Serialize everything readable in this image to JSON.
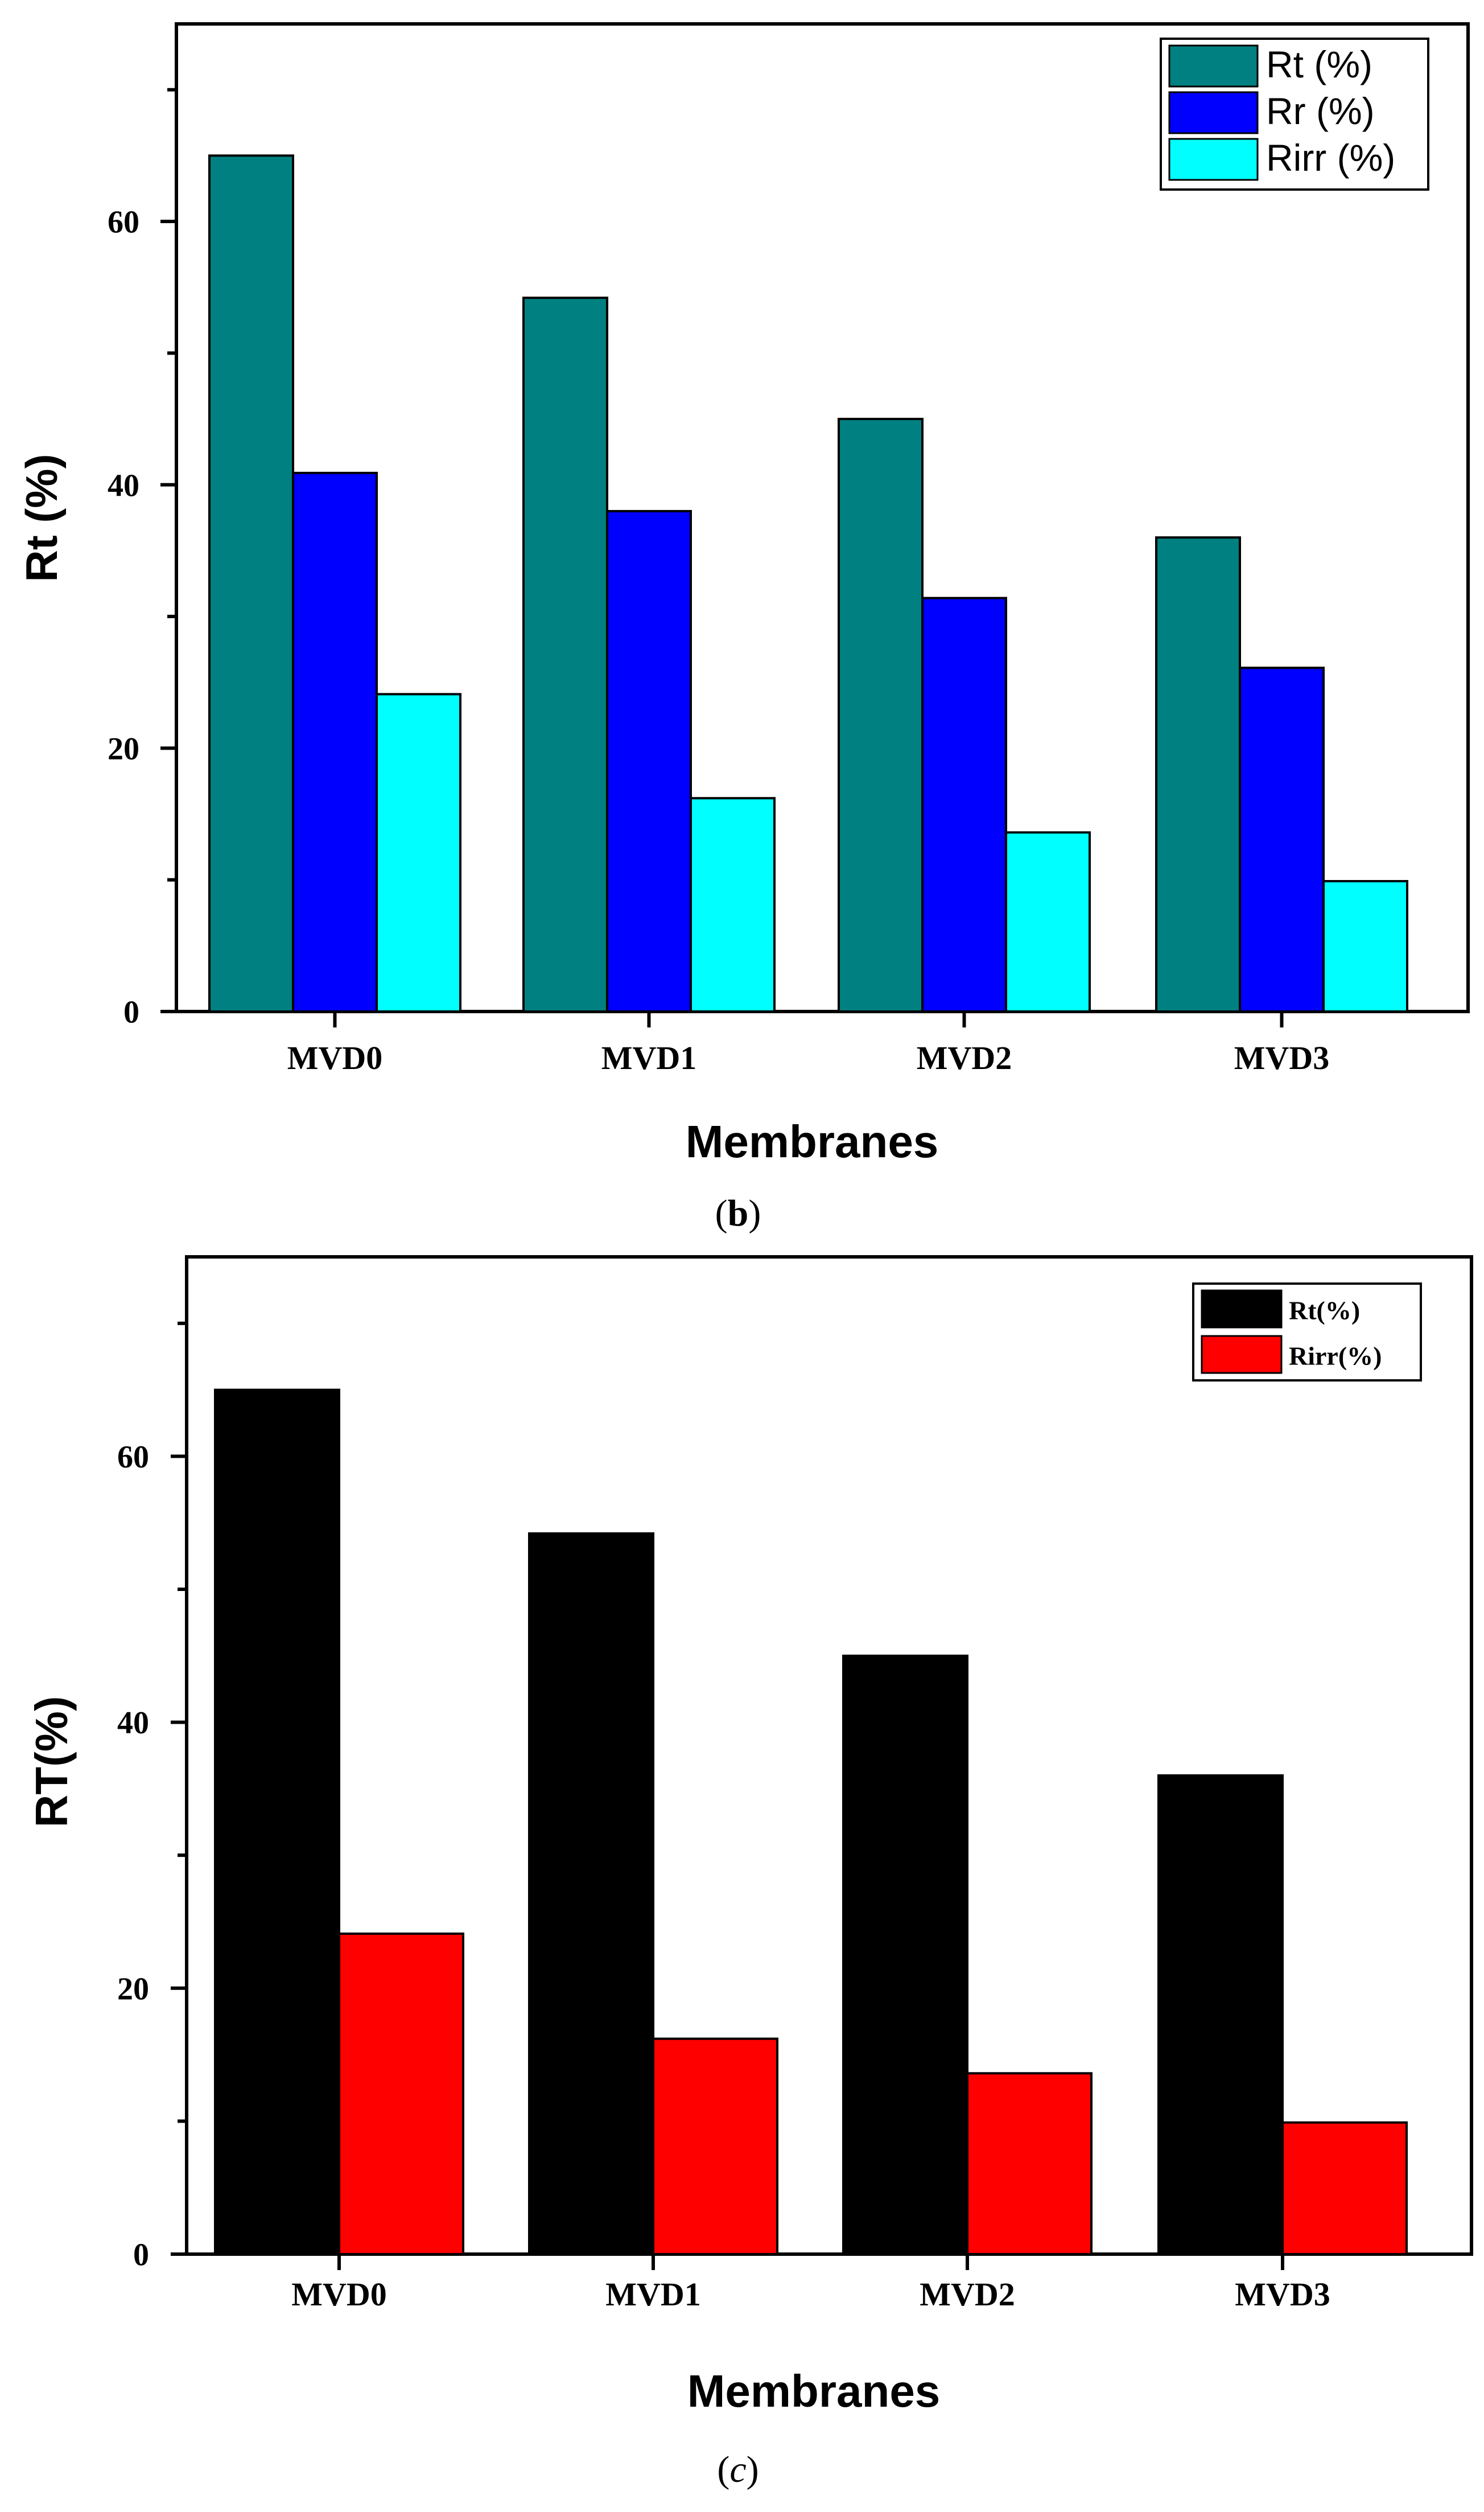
{
  "chart_data": [
    {
      "panel": "b",
      "type": "bar",
      "categories": [
        "MVD0",
        "MVD1",
        "MVD2",
        "MVD3"
      ],
      "series": [
        {
          "name": "Rt (%)",
          "color": "#008080",
          "values": [
            65,
            54.2,
            45,
            36
          ]
        },
        {
          "name": "Rr (%)",
          "color": "#0000FF",
          "values": [
            40.9,
            38,
            31.4,
            26.1
          ]
        },
        {
          "name": "Rirr (%)",
          "color": "#00FFFF",
          "values": [
            24.1,
            16.2,
            13.6,
            9.9
          ]
        }
      ],
      "title": "",
      "xlabel": "Membranes",
      "ylabel": "Rt (%)",
      "ylim": [
        0,
        75
      ],
      "yticks": [
        0,
        20,
        40,
        60
      ],
      "legend": "top-right",
      "grid": false,
      "caption_letter": "b"
    },
    {
      "panel": "c",
      "type": "bar",
      "categories": [
        "MVD0",
        "MVD1",
        "MVD2",
        "MVD3"
      ],
      "series": [
        {
          "name": "Rt(%)",
          "color": "#000000",
          "values": [
            65,
            54.2,
            45,
            36
          ]
        },
        {
          "name": "Rirr(%)",
          "color": "#FF0000",
          "values": [
            24.1,
            16.2,
            13.6,
            9.9
          ]
        }
      ],
      "title": "",
      "xlabel": "Membranes",
      "ylabel": "RT(%)",
      "ylim": [
        0,
        75
      ],
      "yticks": [
        0,
        20,
        40,
        60
      ],
      "legend": "top-right",
      "grid": false,
      "caption_letter": "c"
    }
  ]
}
